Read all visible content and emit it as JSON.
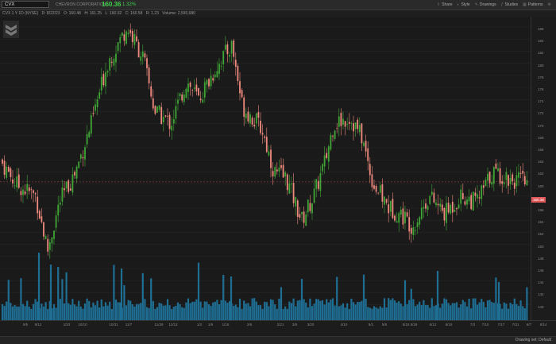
{
  "topbar": {
    "symbol": "CVX",
    "company": "CHEVRON CORPORATION",
    "price": "160.36",
    "change": "1.32%",
    "tools": [
      {
        "label": "Share",
        "icon": "share-icon"
      },
      {
        "label": "Style",
        "icon": "style-icon"
      },
      {
        "label": "Drawings",
        "icon": "pencil-icon"
      },
      {
        "label": "Studies",
        "icon": "studies-icon"
      },
      {
        "label": "Patterns",
        "icon": "patterns-icon"
      }
    ]
  },
  "infobar": {
    "title": "CVX 1 Y 1D (NYSE)",
    "date": "D: 8/22/23",
    "open": "O: 160.48",
    "high": "H: 161.25",
    "low": "L: 160.02",
    "close": "C: 160.58",
    "change": "R: 1.23",
    "volume": "Volume: 2,590,680"
  },
  "yaxis": {
    "ticks": [
      "186",
      "184",
      "182",
      "180",
      "178",
      "176",
      "174",
      "172",
      "170",
      "168",
      "166",
      "164",
      "162",
      "160",
      "158",
      "156",
      "154",
      "152",
      "150",
      "148",
      "146",
      "144",
      "142",
      "140"
    ],
    "last_price": "160.36"
  },
  "xaxis": {
    "ticks": [
      "9/5",
      "9/12",
      "10/3",
      "10/10",
      "10/31",
      "11/7",
      "11/28",
      "12/12",
      "1/2",
      "1/9",
      "1/16",
      "2/6",
      "2/21",
      "3/6",
      "3/20",
      "4/10",
      "5/1",
      "5/8",
      "5/15",
      "5/26",
      "6/12",
      "6/19",
      "7/3",
      "7/10",
      "7/17",
      "7/31",
      "8/7",
      "8/14"
    ]
  },
  "bottom": {
    "drawing_set": "Drawing set: Default"
  },
  "colors": {
    "up": "#3fa535",
    "down": "#f08a7e",
    "volume": "#1f6f95",
    "last_price_bg": "#e05858",
    "accent_price": "#3fcf4a"
  }
}
